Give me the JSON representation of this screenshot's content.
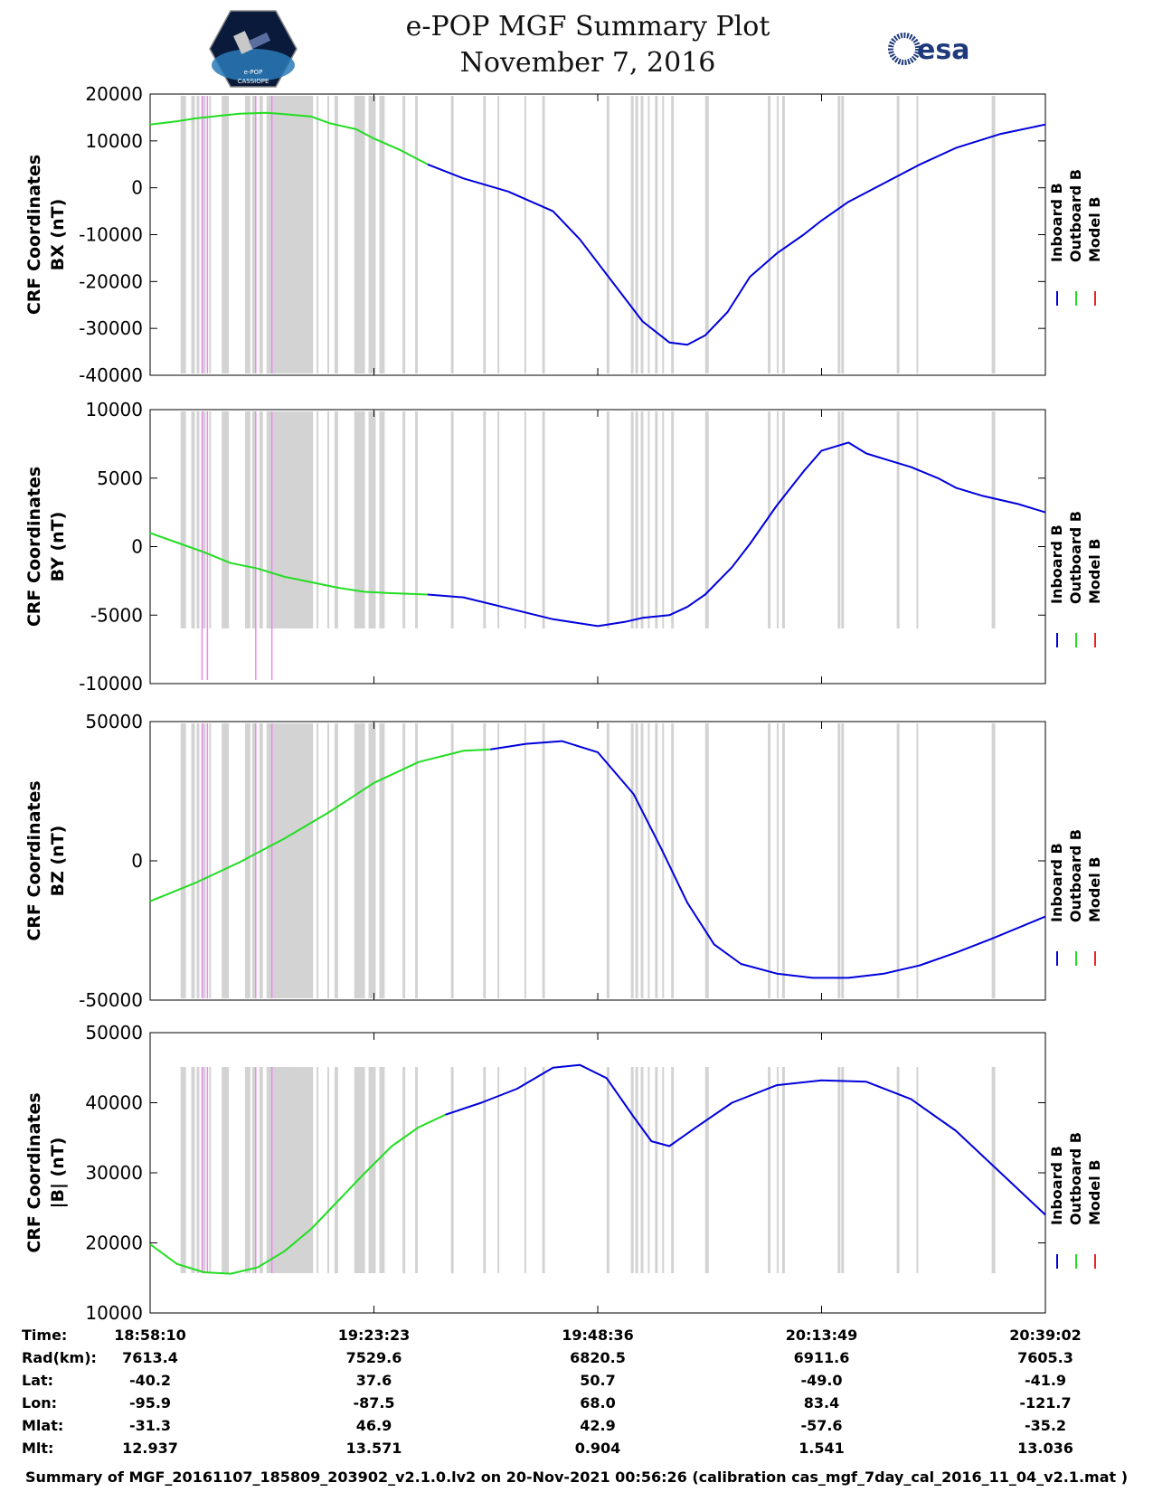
{
  "header": {
    "title_line1": "e-POP MGF Summary Plot",
    "title_line2": "November 7, 2016",
    "logo_left": "CASSIOPE",
    "logo_left_sub": "e-POP",
    "logo_right": "esa"
  },
  "chart_data": [
    {
      "type": "line",
      "ylabel_line1": "CRF Coordinates",
      "ylabel_line2": "BX (nT)",
      "ylim": [
        -40000,
        20000
      ],
      "yticks": [
        20000,
        10000,
        0,
        -10000,
        -20000,
        -30000,
        -40000
      ],
      "ytick_labels": [
        "20000",
        "10000",
        "0",
        "-10000",
        "-20000",
        "-30000",
        "-40000"
      ],
      "legend": [
        "Inboard B",
        "Outboard B",
        "Model B"
      ],
      "series": [
        {
          "name": "Outboard B",
          "color": "#22dd22",
          "x": [
            0.0,
            0.03,
            0.05,
            0.08,
            0.1,
            0.13,
            0.15,
            0.18,
            0.2,
            0.23,
            0.25,
            0.28,
            0.31
          ],
          "values": [
            13500,
            14200,
            14800,
            15400,
            15800,
            16000,
            15700,
            15200,
            13800,
            12500,
            10500,
            8000,
            5000
          ]
        },
        {
          "name": "Inboard B",
          "color": "#0000dd",
          "x": [
            0.31,
            0.35,
            0.4,
            0.45,
            0.48,
            0.52,
            0.55,
            0.58,
            0.6,
            0.62,
            0.645,
            0.67,
            0.7,
            0.73,
            0.75,
            0.78,
            0.82,
            0.86,
            0.9,
            0.95,
            1.0
          ],
          "values": [
            5000,
            2000,
            -800,
            -5000,
            -11000,
            -21000,
            -28500,
            -33000,
            -33500,
            -31500,
            -26500,
            -19000,
            -14000,
            -10000,
            -7000,
            -3000,
            1000,
            5000,
            8500,
            11500,
            13500
          ]
        }
      ]
    },
    {
      "type": "line",
      "ylabel_line1": "CRF Coordinates",
      "ylabel_line2": "BY (nT)",
      "ylim": [
        -10000,
        10000
      ],
      "yticks": [
        10000,
        5000,
        0,
        -5000,
        -10000
      ],
      "ytick_labels": [
        "10000",
        "5000",
        "0",
        "-5000",
        "-10000"
      ],
      "legend": [
        "Inboard B",
        "Outboard B",
        "Model B"
      ],
      "series": [
        {
          "name": "Outboard B",
          "color": "#22dd22",
          "x": [
            0.0,
            0.03,
            0.06,
            0.09,
            0.12,
            0.15,
            0.18,
            0.21,
            0.24,
            0.27,
            0.31
          ],
          "values": [
            1000,
            300,
            -400,
            -1200,
            -1600,
            -2200,
            -2600,
            -3000,
            -3300,
            -3400,
            -3500
          ]
        },
        {
          "name": "Inboard B",
          "color": "#0000dd",
          "x": [
            0.31,
            0.35,
            0.4,
            0.45,
            0.5,
            0.53,
            0.55,
            0.58,
            0.6,
            0.62,
            0.65,
            0.67,
            0.7,
            0.73,
            0.75,
            0.78,
            0.8,
            0.83,
            0.85,
            0.88,
            0.9,
            0.93,
            0.97,
            1.0
          ],
          "values": [
            -3500,
            -3700,
            -4500,
            -5300,
            -5800,
            -5500,
            -5200,
            -5000,
            -4400,
            -3500,
            -1500,
            200,
            3000,
            5500,
            7000,
            7600,
            6800,
            6200,
            5800,
            5000,
            4300,
            3700,
            3100,
            2500
          ]
        }
      ]
    },
    {
      "type": "line",
      "ylabel_line1": "CRF Coordinates",
      "ylabel_line2": "BZ (nT)",
      "ylim": [
        -50000,
        50000
      ],
      "yticks": [
        50000,
        0,
        -50000
      ],
      "ytick_labels": [
        "50000",
        "0",
        "-50000"
      ],
      "legend": [
        "Inboard B",
        "Outboard B",
        "Model B"
      ],
      "series": [
        {
          "name": "Outboard B",
          "color": "#22dd22",
          "x": [
            0.0,
            0.05,
            0.1,
            0.15,
            0.2,
            0.25,
            0.3,
            0.35,
            0.38
          ],
          "values": [
            -14500,
            -8000,
            -500,
            8000,
            17500,
            28000,
            35500,
            39500,
            40000
          ]
        },
        {
          "name": "Inboard B",
          "color": "#0000dd",
          "x": [
            0.38,
            0.42,
            0.46,
            0.5,
            0.54,
            0.57,
            0.6,
            0.63,
            0.66,
            0.7,
            0.74,
            0.78,
            0.82,
            0.86,
            0.9,
            0.94,
            1.0
          ],
          "values": [
            40000,
            42000,
            43000,
            39000,
            24000,
            5000,
            -15000,
            -30000,
            -37000,
            -40500,
            -42000,
            -42000,
            -40500,
            -37500,
            -33000,
            -28000,
            -20000
          ]
        }
      ]
    },
    {
      "type": "line",
      "ylabel_line1": "CRF Coordinates",
      "ylabel_line2": "|B| (nT)",
      "ylim": [
        10000,
        50000
      ],
      "yticks": [
        50000,
        40000,
        30000,
        20000,
        10000
      ],
      "ytick_labels": [
        "50000",
        "40000",
        "30000",
        "20000",
        "10000"
      ],
      "legend": [
        "Inboard B",
        "Outboard B",
        "Model B"
      ],
      "series": [
        {
          "name": "Outboard B",
          "color": "#22dd22",
          "x": [
            0.0,
            0.03,
            0.06,
            0.09,
            0.12,
            0.15,
            0.18,
            0.21,
            0.24,
            0.27,
            0.3,
            0.33
          ],
          "values": [
            19800,
            17000,
            15800,
            15600,
            16500,
            18800,
            22000,
            26000,
            30000,
            33800,
            36500,
            38300
          ]
        },
        {
          "name": "Inboard B",
          "color": "#0000dd",
          "x": [
            0.33,
            0.37,
            0.41,
            0.45,
            0.48,
            0.51,
            0.54,
            0.56,
            0.58,
            0.61,
            0.65,
            0.7,
            0.75,
            0.8,
            0.85,
            0.9,
            0.95,
            1.0
          ],
          "values": [
            38300,
            40000,
            42000,
            45000,
            45400,
            43500,
            38000,
            34500,
            33800,
            36500,
            40000,
            42500,
            43200,
            43000,
            40500,
            36000,
            30000,
            24000
          ]
        }
      ]
    }
  ],
  "x_axis": {
    "tick_fracs": [
      0,
      0.25,
      0.5,
      0.75,
      1.0
    ],
    "rows": [
      {
        "label": "Time:",
        "values": [
          "18:58:10",
          "19:23:23",
          "19:48:36",
          "20:13:49",
          "20:39:02"
        ]
      },
      {
        "label": "Rad(km):",
        "values": [
          "7613.4",
          "7529.6",
          "6820.5",
          "6911.6",
          "7605.3"
        ]
      },
      {
        "label": "Lat:",
        "values": [
          "-40.2",
          "37.6",
          "50.7",
          "-49.0",
          "-41.9"
        ]
      },
      {
        "label": "Lon:",
        "values": [
          "-95.9",
          "-87.5",
          "68.0",
          "83.4",
          "-121.7"
        ]
      },
      {
        "label": "Mlat:",
        "values": [
          "-31.3",
          "46.9",
          "42.9",
          "-57.6",
          "-35.2"
        ]
      },
      {
        "label": "Mlt:",
        "values": [
          "12.937",
          "13.571",
          "0.904",
          "1.541",
          "13.036"
        ]
      }
    ]
  },
  "flag_bands": {
    "gray_color": "#d3d3d3",
    "pink_color": "#ee88ee",
    "gray_intervals": [
      [
        0.034,
        0.04
      ],
      [
        0.046,
        0.05
      ],
      [
        0.052,
        0.055
      ],
      [
        0.058,
        0.062
      ],
      [
        0.066,
        0.068
      ],
      [
        0.08,
        0.088
      ],
      [
        0.106,
        0.112
      ],
      [
        0.114,
        0.118
      ],
      [
        0.122,
        0.126
      ],
      [
        0.13,
        0.182
      ],
      [
        0.186,
        0.188
      ],
      [
        0.198,
        0.2
      ],
      [
        0.206,
        0.21
      ],
      [
        0.228,
        0.24
      ],
      [
        0.244,
        0.252
      ],
      [
        0.256,
        0.262
      ],
      [
        0.282,
        0.285
      ],
      [
        0.296,
        0.299
      ],
      [
        0.336,
        0.339
      ],
      [
        0.372,
        0.375
      ],
      [
        0.388,
        0.39
      ],
      [
        0.418,
        0.42
      ],
      [
        0.438,
        0.441
      ],
      [
        0.51,
        0.513
      ],
      [
        0.537,
        0.54
      ],
      [
        0.542,
        0.545
      ],
      [
        0.548,
        0.551
      ],
      [
        0.556,
        0.558
      ],
      [
        0.564,
        0.567
      ],
      [
        0.572,
        0.574
      ],
      [
        0.582,
        0.585
      ],
      [
        0.62,
        0.624
      ],
      [
        0.69,
        0.693
      ],
      [
        0.7,
        0.702
      ],
      [
        0.706,
        0.709
      ],
      [
        0.768,
        0.771
      ],
      [
        0.772,
        0.775
      ],
      [
        0.834,
        0.837
      ],
      [
        0.856,
        0.858
      ],
      [
        0.94,
        0.944
      ]
    ],
    "pink_lines": [
      0.058,
      0.064,
      0.118,
      0.136
    ]
  },
  "footer": "Summary of MGF_20161107_185809_203902_v2.1.0.lv2 on 20-Nov-2021 00:56:26 (calibration cas_mgf_7day_cal_2016_11_04_v2.1.mat )"
}
